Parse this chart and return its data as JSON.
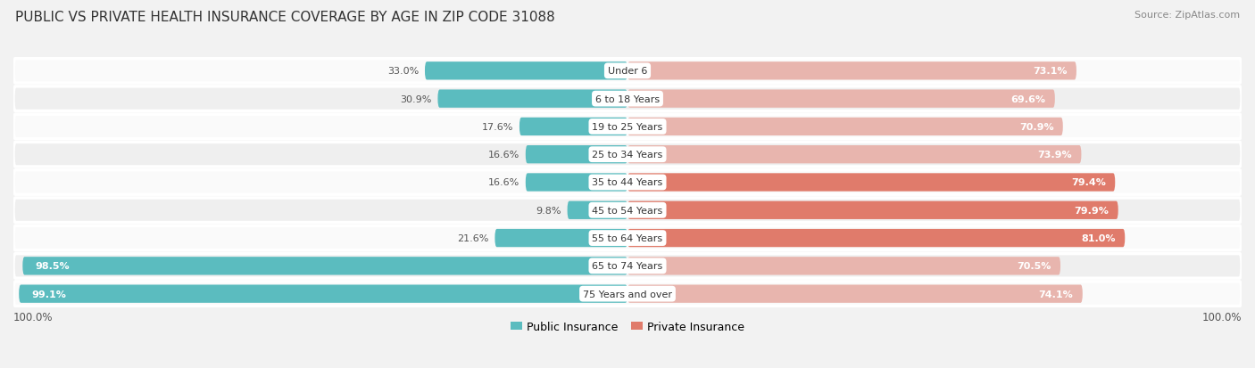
{
  "title": "PUBLIC VS PRIVATE HEALTH INSURANCE COVERAGE BY AGE IN ZIP CODE 31088",
  "source": "Source: ZipAtlas.com",
  "categories": [
    "Under 6",
    "6 to 18 Years",
    "19 to 25 Years",
    "25 to 34 Years",
    "35 to 44 Years",
    "45 to 54 Years",
    "55 to 64 Years",
    "65 to 74 Years",
    "75 Years and over"
  ],
  "public_values": [
    33.0,
    30.9,
    17.6,
    16.6,
    16.6,
    9.8,
    21.6,
    98.5,
    99.1
  ],
  "private_values": [
    73.1,
    69.6,
    70.9,
    73.9,
    79.4,
    79.9,
    81.0,
    70.5,
    74.1
  ],
  "public_color": "#5bbcbf",
  "private_colors": [
    "#e8b5ae",
    "#e8b5ae",
    "#e8b5ae",
    "#e8b5ae",
    "#e07b6b",
    "#e07b6b",
    "#e07b6b",
    "#e8b5ae",
    "#e8b5ae"
  ],
  "public_label": "Public Insurance",
  "private_label": "Private Insurance",
  "legend_public_color": "#5bbcbf",
  "legend_private_color": "#e07b6b",
  "bg_color": "#f2f2f2",
  "row_bg_odd": "#fafafa",
  "row_bg_even": "#efefef",
  "x_left_label": "100.0%",
  "x_right_label": "100.0%",
  "title_fontsize": 11,
  "source_fontsize": 8,
  "label_fontsize": 8.5,
  "value_fontsize": 8,
  "category_fontsize": 8,
  "legend_fontsize": 9
}
